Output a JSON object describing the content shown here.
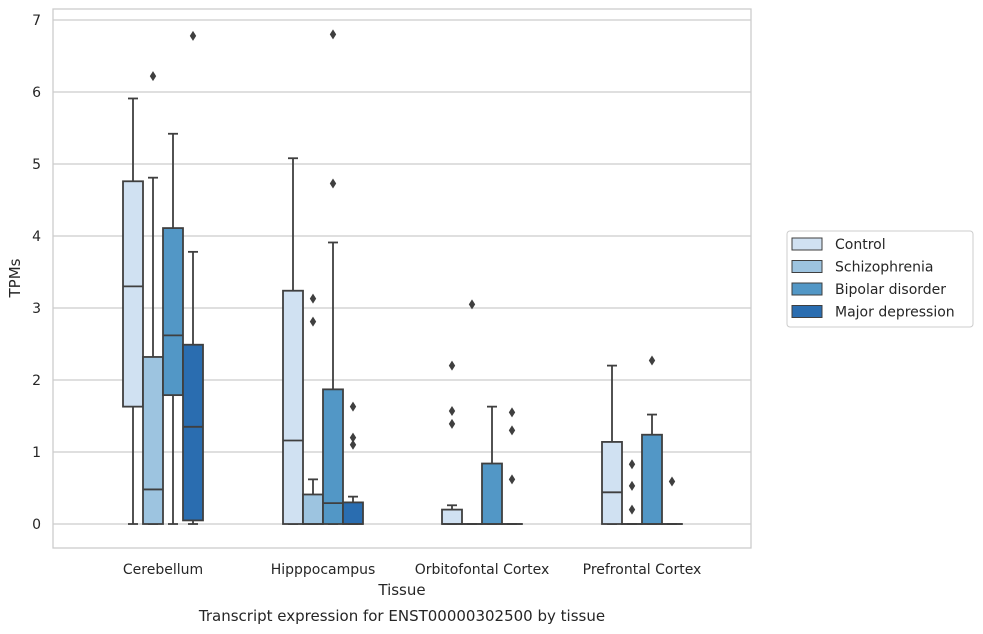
{
  "chart_data": {
    "type": "box",
    "caption": "Transcript expression for ENST00000302500 by tissue",
    "xlabel": "Tissue",
    "ylabel": "TPMs",
    "ylim": [
      -0.33,
      7.15
    ],
    "yticks": [
      0,
      1,
      2,
      3,
      4,
      5,
      6,
      7
    ],
    "grid": true,
    "legend_position": "right",
    "categories": [
      "Cerebellum",
      "Hipppocampus",
      "Orbitofontal Cortex",
      "Prefrontal Cortex"
    ],
    "series": [
      {
        "name": "Control",
        "color": "#d0e1f2",
        "boxes": [
          {
            "whisker_low": 0,
            "q1": 1.63,
            "median": 3.3,
            "q3": 4.76,
            "whisker_high": 5.91,
            "outliers": []
          },
          {
            "whisker_low": 0,
            "q1": 0,
            "median": 1.16,
            "q3": 3.24,
            "whisker_high": 5.08,
            "outliers": []
          },
          {
            "whisker_low": 0,
            "q1": 0,
            "median": 0,
            "q3": 0.2,
            "whisker_high": 0.26,
            "outliers": [
              1.39,
              1.57,
              2.2
            ]
          },
          {
            "whisker_low": 0,
            "q1": 0,
            "median": 0.44,
            "q3": 1.14,
            "whisker_high": 2.2,
            "outliers": []
          }
        ]
      },
      {
        "name": "Schizophrenia",
        "color": "#9dc4e0",
        "boxes": [
          {
            "whisker_low": 0,
            "q1": 0,
            "median": 0.48,
            "q3": 2.32,
            "whisker_high": 4.81,
            "outliers": [
              6.22
            ]
          },
          {
            "whisker_low": 0,
            "q1": 0,
            "median": 0,
            "q3": 0.41,
            "whisker_high": 0.62,
            "outliers": [
              2.81,
              3.13
            ]
          },
          {
            "whisker_low": 0,
            "q1": 0,
            "median": 0,
            "q3": 0,
            "whisker_high": 0,
            "outliers": [
              3.05
            ]
          },
          {
            "whisker_low": 0,
            "q1": 0,
            "median": 0,
            "q3": 0,
            "whisker_high": 0,
            "outliers": [
              0.2,
              0.53,
              0.83
            ]
          }
        ]
      },
      {
        "name": "Bipolar disorder",
        "color": "#5297c6",
        "boxes": [
          {
            "whisker_low": 0,
            "q1": 1.79,
            "median": 2.62,
            "q3": 4.11,
            "whisker_high": 5.42,
            "outliers": []
          },
          {
            "whisker_low": 0,
            "q1": 0,
            "median": 0.29,
            "q3": 1.87,
            "whisker_high": 3.91,
            "outliers": [
              4.73,
              6.8
            ]
          },
          {
            "whisker_low": 0,
            "q1": 0,
            "median": 0,
            "q3": 0.84,
            "whisker_high": 1.63,
            "outliers": []
          },
          {
            "whisker_low": 0,
            "q1": 0,
            "median": 0,
            "q3": 1.24,
            "whisker_high": 1.52,
            "outliers": [
              2.27
            ]
          }
        ]
      },
      {
        "name": "Major depression",
        "color": "#2a6db0",
        "boxes": [
          {
            "whisker_low": 0,
            "q1": 0.05,
            "median": 1.35,
            "q3": 2.49,
            "whisker_high": 3.78,
            "outliers": [
              6.78
            ]
          },
          {
            "whisker_low": 0,
            "q1": 0,
            "median": 0,
            "q3": 0.3,
            "whisker_high": 0.38,
            "outliers": [
              1.1,
              1.2,
              1.63
            ]
          },
          {
            "whisker_low": 0,
            "q1": 0,
            "median": 0,
            "q3": 0,
            "whisker_high": 0,
            "outliers": [
              0.62,
              1.3,
              1.55
            ]
          },
          {
            "whisker_low": 0,
            "q1": 0,
            "median": 0,
            "q3": 0,
            "whisker_high": 0,
            "outliers": [
              0.59
            ]
          }
        ]
      }
    ]
  }
}
